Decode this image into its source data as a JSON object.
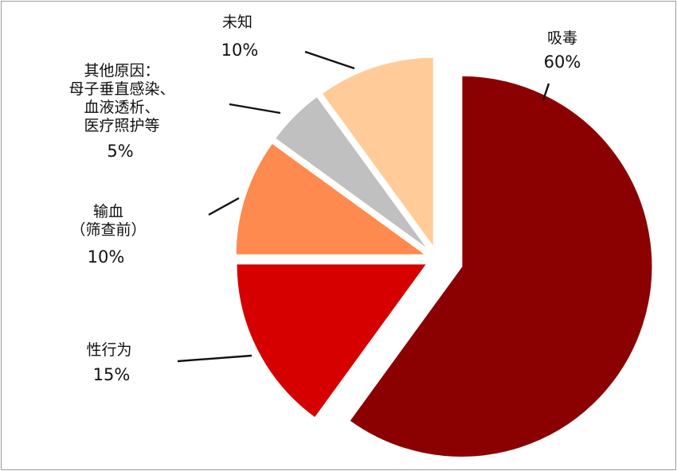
{
  "chart_data": {
    "type": "pie",
    "title": "",
    "slices": [
      {
        "label_lines": [
          "吸毒"
        ],
        "value": 60,
        "value_label": "60%",
        "color": "#8b0000",
        "exploded": true
      },
      {
        "label_lines": [
          "性行为"
        ],
        "value": 15,
        "value_label": "15%",
        "color": "#d60000",
        "exploded": false
      },
      {
        "label_lines": [
          "输血",
          "（筛查前）"
        ],
        "value": 10,
        "value_label": "10%",
        "color": "#ff8a4f",
        "exploded": false
      },
      {
        "label_lines": [
          "其他原因：",
          "母子垂直感染、",
          "血液透析、",
          "医疗照护等"
        ],
        "value": 5,
        "value_label": "5%",
        "color": "#c0c0c0",
        "exploded": false
      },
      {
        "label_lines": [
          "未知"
        ],
        "value": 10,
        "value_label": "10%",
        "color": "#ffcc99",
        "exploded": false
      }
    ],
    "legend": "none"
  }
}
